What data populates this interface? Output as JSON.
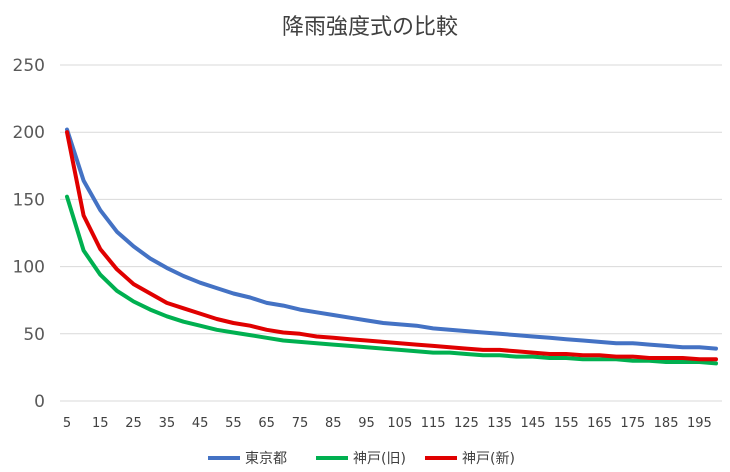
{
  "chart_data": {
    "type": "line",
    "title": "降雨強度式の比較",
    "xlabel": "",
    "ylabel": "",
    "ylim": [
      0,
      250
    ],
    "yticks": [
      0,
      50,
      100,
      150,
      200,
      250
    ],
    "x": [
      5,
      10,
      15,
      20,
      25,
      30,
      35,
      40,
      45,
      50,
      55,
      60,
      65,
      70,
      75,
      80,
      85,
      90,
      95,
      100,
      105,
      110,
      115,
      120,
      125,
      130,
      135,
      140,
      145,
      150,
      155,
      160,
      165,
      170,
      175,
      180,
      185,
      190,
      195,
      200
    ],
    "xtick_labels": [
      "5",
      "15",
      "25",
      "35",
      "45",
      "55",
      "65",
      "75",
      "85",
      "95",
      "105",
      "115",
      "125",
      "135",
      "145",
      "155",
      "165",
      "175",
      "185",
      "195"
    ],
    "grid": true,
    "legend_position": "bottom",
    "series": [
      {
        "name": "東京都",
        "color": "#4472C4",
        "values": [
          202,
          164,
          142,
          126,
          115,
          106,
          99,
          93,
          88,
          84,
          80,
          77,
          73,
          71,
          68,
          66,
          64,
          62,
          60,
          58,
          57,
          56,
          54,
          53,
          52,
          51,
          50,
          49,
          48,
          47,
          46,
          45,
          44,
          43,
          43,
          42,
          41,
          40,
          40,
          39
        ]
      },
      {
        "name": "神戸(旧)",
        "color": "#00B050",
        "values": [
          152,
          112,
          94,
          82,
          74,
          68,
          63,
          59,
          56,
          53,
          51,
          49,
          47,
          45,
          44,
          43,
          42,
          41,
          40,
          39,
          38,
          37,
          36,
          36,
          35,
          34,
          34,
          33,
          33,
          32,
          32,
          31,
          31,
          31,
          30,
          30,
          29,
          29,
          29,
          28
        ]
      },
      {
        "name": "神戸(新)",
        "color": "#E00000",
        "values": [
          200,
          138,
          113,
          98,
          87,
          80,
          73,
          69,
          65,
          61,
          58,
          56,
          53,
          51,
          50,
          48,
          47,
          46,
          45,
          44,
          43,
          42,
          41,
          40,
          39,
          38,
          38,
          37,
          36,
          35,
          35,
          34,
          34,
          33,
          33,
          32,
          32,
          32,
          31,
          31
        ]
      }
    ]
  }
}
